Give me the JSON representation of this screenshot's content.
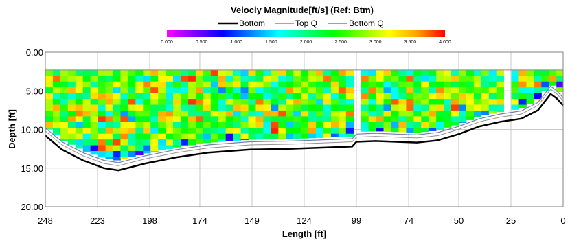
{
  "chart_data": {
    "type": "heatmap",
    "title": "Velociy Magnitude[ft/s] (Ref: Btm)",
    "xlabel": "Length [ft]",
    "ylabel": "Depth [ft]",
    "x_ticks": [
      "248",
      "223",
      "198",
      "174",
      "149",
      "124",
      "99",
      "74",
      "50",
      "25",
      "0"
    ],
    "y_ticks": [
      "0.00",
      "5.00",
      "10.00",
      "15.00",
      "20.00"
    ],
    "xlim": [
      248,
      0
    ],
    "ylim": [
      0,
      20
    ],
    "grid": true,
    "legend": {
      "placement": "top",
      "entries": [
        {
          "label": "Bottom",
          "color": "#000000"
        },
        {
          "label": "Top Q",
          "color": "#a070c0"
        },
        {
          "label": "Bottom Q",
          "color": "#7080b0"
        }
      ]
    },
    "colorbar": {
      "ticks": [
        "0.000",
        "0.500",
        "1.000",
        "1.500",
        "2.000",
        "2.500",
        "3.000",
        "3.500",
        "4.000"
      ],
      "range": [
        0,
        4
      ],
      "colors": [
        "#ff00ff",
        "#8000ff",
        "#0000ff",
        "#0080ff",
        "#00ffff",
        "#00ff80",
        "#00ff00",
        "#80ff00",
        "#ffff00",
        "#ffa000",
        "#ff0000"
      ]
    },
    "bottom_profile": {
      "x": [
        248,
        240,
        230,
        220,
        213,
        200,
        185,
        170,
        150,
        130,
        110,
        101,
        99,
        90,
        80,
        70,
        60,
        50,
        40,
        30,
        20,
        12,
        6,
        3,
        0
      ],
      "y": [
        10.8,
        12.6,
        14.0,
        15.0,
        15.3,
        14.4,
        13.6,
        13.0,
        12.6,
        12.5,
        12.3,
        12.2,
        11.6,
        11.5,
        11.6,
        11.7,
        11.4,
        10.6,
        9.6,
        9.0,
        8.6,
        7.5,
        5.4,
        6.0,
        6.9
      ]
    },
    "top_q_depth": 2.3,
    "measured_top_depth": 2.3,
    "bottom_q_offset_ft": 1.0,
    "bottom_q2_offset_ft": 0.6,
    "ensemble_width_ft": 3.6,
    "bin_size_ft": 0.75,
    "gaps_x": [
      [
        101,
        98.5
      ],
      [
        30,
        26.5
      ]
    ],
    "velocity_mean": 2.6,
    "velocity_range": [
      0.3,
      4.0
    ]
  }
}
